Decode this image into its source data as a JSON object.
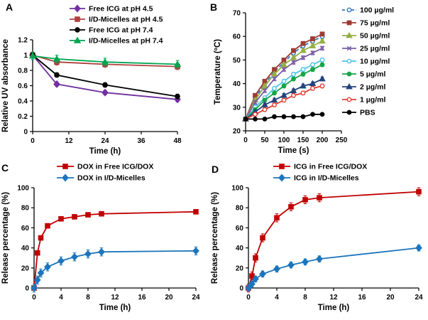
{
  "figure": {
    "background": "#ffffff",
    "panel_count": 4
  },
  "chart_data": [
    {
      "panel": "A",
      "type": "line",
      "xlabel": "Time (h)",
      "ylabel": "Relative UV absorbance",
      "xlim": [
        0,
        48
      ],
      "ylim": [
        0,
        1.2
      ],
      "xticks": [
        0,
        12,
        24,
        36,
        48
      ],
      "yticks": [
        0,
        0.2,
        0.4,
        0.6,
        0.8,
        1,
        1.2
      ],
      "legend_position": "inside-top-right",
      "series": [
        {
          "name": "Free ICG at pH 4.5",
          "color": "#7030a0",
          "marker": "diamond",
          "err": 0.03,
          "x": [
            0,
            8,
            24,
            48
          ],
          "y": [
            1.0,
            0.62,
            0.51,
            0.42
          ]
        },
        {
          "name": "I/D-Micelles at pH 4.5",
          "color": "#b0413e",
          "marker": "square",
          "err": 0.04,
          "x": [
            0,
            8,
            24,
            48
          ],
          "y": [
            1.0,
            0.91,
            0.88,
            0.85
          ]
        },
        {
          "name": "Free ICG at pH 7.4",
          "color": "#000000",
          "marker": "circle",
          "err": 0.03,
          "x": [
            0,
            8,
            24,
            48
          ],
          "y": [
            1.0,
            0.74,
            0.61,
            0.46
          ]
        },
        {
          "name": "I/D-Micelles at pH 7.4",
          "color": "#00a550",
          "marker": "triangle",
          "err": 0.05,
          "x": [
            0,
            8,
            24,
            48
          ],
          "y": [
            0.99,
            0.95,
            0.91,
            0.88
          ]
        }
      ]
    },
    {
      "panel": "B",
      "type": "line",
      "xlabel": "Time (s)",
      "ylabel": "Temperature (ºC)",
      "xlim": [
        0,
        250
      ],
      "ylim": [
        20,
        70
      ],
      "xticks": [
        0,
        50,
        100,
        150,
        200,
        250
      ],
      "yticks": [
        20,
        30,
        40,
        50,
        60,
        70
      ],
      "legend_position": "outside-right",
      "series": [
        {
          "name": "100 µg/ml",
          "color": "#2e75b6",
          "marker": "circle",
          "open": true,
          "dash": true,
          "err": 0.8,
          "x": [
            0,
            25,
            50,
            75,
            100,
            125,
            150,
            175,
            200
          ],
          "y": [
            25,
            34,
            40,
            45,
            49,
            53,
            56,
            58,
            60
          ]
        },
        {
          "name": "75 µg/ml",
          "color": "#9e3b36",
          "marker": "square",
          "err": 0.8,
          "x": [
            0,
            25,
            50,
            75,
            100,
            125,
            150,
            175,
            200
          ],
          "y": [
            25,
            35,
            41,
            46,
            50,
            54,
            57,
            59,
            61
          ]
        },
        {
          "name": "50 µg/ml",
          "color": "#94af45",
          "marker": "triangle",
          "err": 0.8,
          "x": [
            0,
            25,
            50,
            75,
            100,
            125,
            150,
            175,
            200
          ],
          "y": [
            25,
            33,
            39,
            44,
            48,
            51,
            54,
            56,
            58
          ]
        },
        {
          "name": "25 µg/ml",
          "color": "#7b5ea7",
          "marker": "x",
          "err": 0.8,
          "x": [
            0,
            25,
            50,
            75,
            100,
            125,
            150,
            175,
            200
          ],
          "y": [
            25,
            32,
            37,
            42,
            46,
            49,
            51,
            53,
            55
          ]
        },
        {
          "name": "10 µg/ml",
          "color": "#4fc3e8",
          "marker": "circle",
          "open": true,
          "err": 0.8,
          "x": [
            0,
            25,
            50,
            75,
            100,
            125,
            150,
            175,
            200
          ],
          "y": [
            25,
            30,
            34,
            38,
            41,
            44,
            46,
            48,
            50
          ]
        },
        {
          "name": "5 µg/ml",
          "color": "#17a548",
          "marker": "circle",
          "err": 0.8,
          "x": [
            0,
            25,
            50,
            75,
            100,
            125,
            150,
            175,
            200
          ],
          "y": [
            25,
            29,
            33,
            36,
            39,
            42,
            44,
            46,
            48
          ]
        },
        {
          "name": "2 µg/ml",
          "color": "#24437c",
          "marker": "triangle",
          "err": 0.8,
          "x": [
            0,
            25,
            50,
            75,
            100,
            125,
            150,
            175,
            200
          ],
          "y": [
            25,
            28,
            31,
            33,
            35,
            37,
            39,
            40,
            42
          ]
        },
        {
          "name": "1 µg/ml",
          "color": "#e23d32",
          "marker": "circle",
          "open": true,
          "err": 0.8,
          "x": [
            0,
            25,
            50,
            75,
            100,
            125,
            150,
            175,
            200
          ],
          "y": [
            25,
            27,
            29,
            31,
            33,
            35,
            36,
            38,
            39
          ]
        },
        {
          "name": "PBS",
          "color": "#000000",
          "marker": "circle",
          "err": 0.5,
          "x": [
            0,
            25,
            50,
            75,
            100,
            125,
            150,
            175,
            200
          ],
          "y": [
            25,
            25,
            25,
            26,
            26,
            26,
            26,
            27,
            27
          ]
        }
      ]
    },
    {
      "panel": "C",
      "type": "line",
      "xlabel": "Time (h)",
      "ylabel": "Release percentage (%)",
      "xlim": [
        0,
        24
      ],
      "ylim": [
        0,
        100
      ],
      "xticks": [
        0,
        4,
        8,
        12,
        16,
        20,
        24
      ],
      "yticks": [
        0,
        20,
        40,
        60,
        80,
        100
      ],
      "legend_position": "inside-top",
      "series": [
        {
          "name": "DOX in Free ICG/DOX",
          "color": "#c00000",
          "marker": "square",
          "err": 2,
          "x": [
            0,
            0.5,
            1,
            2,
            4,
            6,
            8,
            10,
            24
          ],
          "y": [
            0,
            35,
            50,
            62,
            69,
            71,
            73,
            74,
            76
          ]
        },
        {
          "name": "DOX in I/D-Micelles",
          "color": "#1c75bc",
          "marker": "diamond",
          "err": 4,
          "x": [
            0,
            0.5,
            1,
            2,
            4,
            6,
            8,
            10,
            24
          ],
          "y": [
            0,
            8,
            15,
            21,
            27,
            31,
            34,
            36,
            37
          ]
        }
      ]
    },
    {
      "panel": "D",
      "type": "line",
      "xlabel": "Time (h)",
      "ylabel": "Release percentage (%)",
      "xlim": [
        0,
        24
      ],
      "ylim": [
        0,
        100
      ],
      "xticks": [
        0,
        4,
        8,
        12,
        16,
        20,
        24
      ],
      "yticks": [
        0,
        20,
        40,
        60,
        80,
        100
      ],
      "legend_position": "inside-top",
      "series": [
        {
          "name": "ICG in Free ICG/DOX",
          "color": "#c00000",
          "marker": "square",
          "err": 4,
          "x": [
            0,
            0.5,
            1,
            2,
            4,
            6,
            8,
            10,
            24
          ],
          "y": [
            0,
            12,
            30,
            50,
            70,
            81,
            88,
            90,
            96
          ]
        },
        {
          "name": "ICG in I/D-Micelles",
          "color": "#1c75bc",
          "marker": "diamond",
          "err": 3,
          "x": [
            0,
            0.5,
            1,
            2,
            4,
            6,
            8,
            10,
            24
          ],
          "y": [
            0,
            4,
            9,
            14,
            19,
            23,
            26,
            29,
            40
          ]
        }
      ]
    }
  ]
}
